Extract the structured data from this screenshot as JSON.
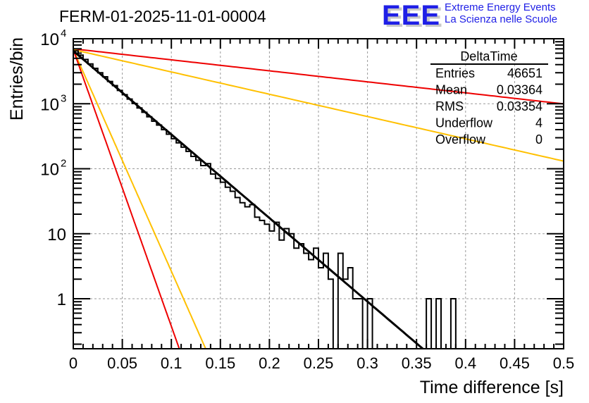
{
  "header": {
    "title": "FERM-01-2025-11-01-00004",
    "logo_mark": "EEE",
    "logo_line1": "Extreme Energy Events",
    "logo_line2": "La Scienza nelle Scuole"
  },
  "stats_box": {
    "name": "DeltaTime",
    "rows": [
      {
        "label": "Entries",
        "value": "46651"
      },
      {
        "label": "Mean",
        "value": "0.03364"
      },
      {
        "label": "RMS",
        "value": "0.03354"
      },
      {
        "label": "Underflow",
        "value": "4"
      },
      {
        "label": "Overflow",
        "value": "0"
      }
    ]
  },
  "colors": {
    "histogram": "#000000",
    "fit": "#000000",
    "bound_red": "#ee0000",
    "bound_yellow": "#ffc000",
    "grid": "#999999"
  },
  "chart_data": {
    "type": "histogram",
    "title": "FERM-01-2025-11-01-00004",
    "xlabel": "Time difference [s]",
    "ylabel": "Entries/bin",
    "xlim": [
      0,
      0.5
    ],
    "ylim": [
      0.17,
      10000
    ],
    "yscale": "log",
    "grid": true,
    "x_ticks": [
      "0",
      "0.05",
      "0.1",
      "0.15",
      "0.2",
      "0.25",
      "0.3",
      "0.35",
      "0.4",
      "0.45",
      "0.5"
    ],
    "x_tick_values": [
      0,
      0.05,
      0.1,
      0.15,
      0.2,
      0.25,
      0.3,
      0.35,
      0.4,
      0.45,
      0.5
    ],
    "y_ticks": [
      {
        "value": 1,
        "mant": "1",
        "exp": ""
      },
      {
        "value": 10,
        "mant": "10",
        "exp": ""
      },
      {
        "value": 100,
        "mant": "10",
        "exp": "2"
      },
      {
        "value": 1000,
        "mant": "10",
        "exp": "3"
      },
      {
        "value": 10000,
        "mant": "10",
        "exp": "4"
      }
    ],
    "histogram": {
      "name": "DeltaTime",
      "bin_width": 0.005,
      "x_start": 0,
      "values": [
        6500,
        5600,
        4800,
        4100,
        3500,
        3000,
        2600,
        2200,
        1900,
        1600,
        1380,
        1180,
        1010,
        860,
        740,
        630,
        540,
        470,
        400,
        340,
        290,
        250,
        215,
        185,
        155,
        135,
        112,
        120,
        83,
        71,
        62,
        52,
        45,
        36,
        30,
        26,
        28,
        18,
        16,
        14,
        11,
        15,
        8,
        12,
        10,
        6,
        7,
        5,
        4,
        6,
        3,
        5,
        2,
        0,
        5,
        2,
        3,
        1,
        1,
        0,
        1,
        0,
        0,
        0,
        0,
        0,
        0,
        0,
        0,
        0,
        0,
        0,
        1,
        0,
        1,
        0,
        0,
        1,
        0,
        0,
        0,
        0,
        0,
        0,
        0,
        0,
        0,
        0,
        0,
        0,
        0,
        0,
        0,
        0,
        0,
        0,
        0,
        0,
        0,
        0
      ]
    },
    "curves": [
      {
        "name": "fit",
        "color": "#000000",
        "A": 6500,
        "slope": -29.6,
        "x_end": 0.357
      },
      {
        "name": "upper-bound-red",
        "color": "#ee0000",
        "A": 7000,
        "slope": -3.9,
        "x_end": 0.5
      },
      {
        "name": "upper-bound-yellow",
        "color": "#ffc000",
        "A": 6800,
        "slope": -7.9,
        "x_end": 0.5
      },
      {
        "name": "lower-bound-yellow",
        "color": "#ffc000",
        "A": 6800,
        "slope": -78.5,
        "x_end": 0.135
      },
      {
        "name": "lower-bound-red",
        "color": "#ee0000",
        "A": 6800,
        "slope": -98,
        "x_end": 0.108
      }
    ]
  }
}
